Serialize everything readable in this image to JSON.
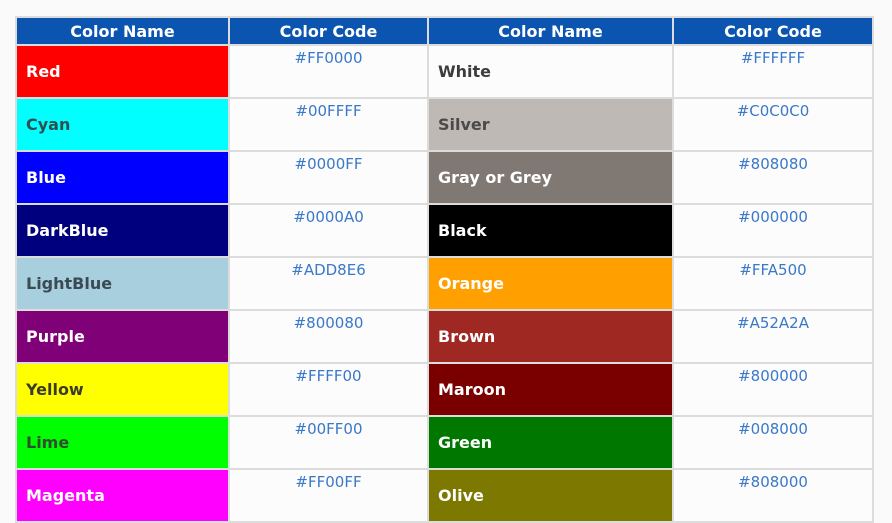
{
  "header": {
    "col1": "Color Name",
    "col2": "Color Code",
    "col3": "Color Name",
    "col4": "Color Code"
  },
  "left": [
    {
      "name": "Red",
      "code": "#FF0000",
      "swatch": "#ff0000",
      "text": "#ffffff"
    },
    {
      "name": "Cyan",
      "code": "#00FFFF",
      "swatch": "#00ffff",
      "text": "#2f4f4f"
    },
    {
      "name": "Blue",
      "code": "#0000FF",
      "swatch": "#0000ff",
      "text": "#ffffff"
    },
    {
      "name": "DarkBlue",
      "code": "#0000A0",
      "swatch": "#00007f",
      "text": "#ffffff"
    },
    {
      "name": "LightBlue",
      "code": "#ADD8E6",
      "swatch": "#a8cfdd",
      "text": "#3b4a55"
    },
    {
      "name": "Purple",
      "code": "#800080",
      "swatch": "#800077",
      "text": "#ffffff"
    },
    {
      "name": "Yellow",
      "code": "#FFFF00",
      "swatch": "#ffff00",
      "text": "#3b3b2a"
    },
    {
      "name": "Lime",
      "code": "#00FF00",
      "swatch": "#00ff00",
      "text": "#2f4f2f"
    },
    {
      "name": "Magenta",
      "code": "#FF00FF",
      "swatch": "#ff00ff",
      "text": "#ffffff"
    }
  ],
  "right": [
    {
      "name": "White",
      "code": "#FFFFFF",
      "swatch": "#fcfcfc",
      "text": "#3c3c3c"
    },
    {
      "name": "Silver",
      "code": "#C0C0C0",
      "swatch": "#bfb9b5",
      "text": "#4a4a4a"
    },
    {
      "name": "Gray or Grey",
      "code": "#808080",
      "swatch": "#807873",
      "text": "#ffffff"
    },
    {
      "name": "Black",
      "code": "#000000",
      "swatch": "#000000",
      "text": "#ffffff"
    },
    {
      "name": "Orange",
      "code": "#FFA500",
      "swatch": "#ffa000",
      "text": "#ffffff"
    },
    {
      "name": "Brown",
      "code": "#A52A2A",
      "swatch": "#a02822",
      "text": "#ffffff"
    },
    {
      "name": "Maroon",
      "code": "#800000",
      "swatch": "#7a0000",
      "text": "#ffffff"
    },
    {
      "name": "Green",
      "code": "#008000",
      "swatch": "#007800",
      "text": "#ffffff"
    },
    {
      "name": "Olive",
      "code": "#808000",
      "swatch": "#7d7800",
      "text": "#ffffff"
    }
  ]
}
